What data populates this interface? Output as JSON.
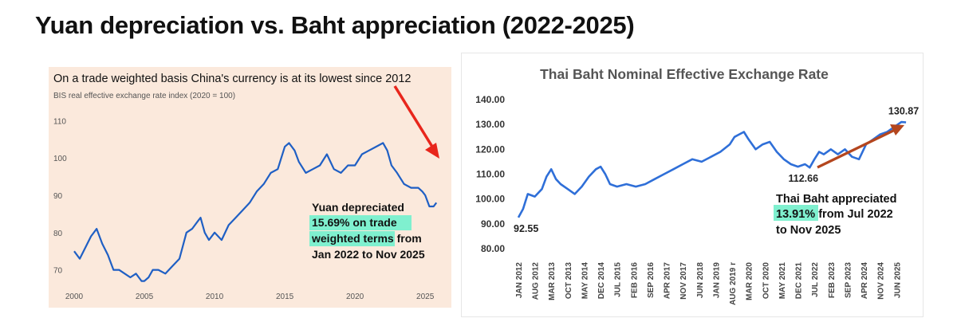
{
  "page": {
    "title": "Yuan depreciation vs. Baht appreciation (2022-2025)"
  },
  "colors": {
    "line": "#1f5fc4",
    "left_arrow": "#e8261c",
    "right_arrow": "#b4461e",
    "highlight": "#7ff0cf",
    "left_bg": "#fbe9dc"
  },
  "chart_data": [
    {
      "type": "line",
      "title": "On a trade weighted basis China's currency is at its lowest since 2012",
      "subtitle": "BIS real effective exchange rate index (2020 = 100)",
      "xlim": [
        2000,
        2025.9
      ],
      "ylim": [
        65,
        112
      ],
      "x_ticks": [
        2000,
        2005,
        2010,
        2015,
        2020,
        2025
      ],
      "x_tick_labels": [
        "2000",
        "2005",
        "2010",
        "2015",
        "2020",
        "2025"
      ],
      "y_ticks": [
        70,
        80,
        90,
        100,
        110
      ],
      "y_tick_labels": [
        "70",
        "80",
        "90",
        "100",
        "110"
      ],
      "grid": false,
      "series": [
        {
          "x": [
            2000,
            2000.4,
            2000.8,
            2001.2,
            2001.6,
            2002,
            2002.4,
            2002.8,
            2003.2,
            2003.6,
            2004,
            2004.4,
            2004.8,
            2005,
            2005.3,
            2005.6,
            2006,
            2006.5,
            2007,
            2007.5,
            2008,
            2008.4,
            2008.8,
            2009,
            2009.3,
            2009.6,
            2010,
            2010.5,
            2011,
            2011.5,
            2012,
            2012.5,
            2013,
            2013.5,
            2014,
            2014.5,
            2015,
            2015.3,
            2015.7,
            2016,
            2016.5,
            2017,
            2017.5,
            2018,
            2018.5,
            2019,
            2019.5,
            2020,
            2020.5,
            2021,
            2021.5,
            2022,
            2022.3,
            2022.6,
            2023,
            2023.5,
            2024,
            2024.5,
            2024.8,
            2025,
            2025.3,
            2025.6,
            2025.8
          ],
          "y": [
            75,
            73,
            76,
            79,
            81,
            77,
            74,
            70,
            70,
            69,
            68,
            69,
            67,
            67,
            68,
            70,
            70,
            69,
            71,
            73,
            80,
            81,
            83,
            84,
            80,
            78,
            80,
            78,
            82,
            84,
            86,
            88,
            91,
            93,
            96,
            97,
            103,
            104,
            102,
            99,
            96,
            97,
            98,
            101,
            97,
            96,
            98,
            98,
            101,
            102,
            103,
            104,
            102,
            98,
            96,
            93,
            92,
            92,
            91,
            90,
            87,
            87,
            88
          ]
        }
      ],
      "annotations": [
        {
          "text": "Yuan depreciated",
          "highlighted": false
        },
        {
          "text": "15.69% on trade",
          "highlighted": true
        },
        {
          "text": "weighted terms",
          "highlighted": true
        },
        {
          "text": " from",
          "highlighted": false
        },
        {
          "text": "Jan 2022 to Nov 2025",
          "highlighted": false
        }
      ]
    },
    {
      "type": "line",
      "title": "Thai Baht Nominal Effective Exchange Rate",
      "ylim": [
        80,
        140
      ],
      "y_ticks": [
        80,
        90,
        100,
        110,
        120,
        130,
        140
      ],
      "y_tick_labels": [
        "80.00",
        "90.00",
        "100.00",
        "110.00",
        "120.00",
        "130.00",
        "140.00"
      ],
      "grid": false,
      "x_tick_labels": [
        "JAN 2012",
        "AUG 2012",
        "MAR 2013",
        "OCT 2013",
        "MAY 2014",
        "DEC 2014",
        "JUL 2015",
        "FEB 2016",
        "SEP 2016",
        "APR 2017",
        "NOV 2017",
        "JUN 2018",
        "JAN 2019",
        "AUG 2019 r",
        "MAR 2020",
        "OCT 2020",
        "MAY 2021",
        "DEC 2021",
        "JUL 2022",
        "FEB 2023",
        "SEP 2023",
        "APR 2024",
        "NOV 2024",
        "JUN 2025"
      ],
      "x_tick_positions": [
        0,
        7,
        14,
        21,
        28,
        35,
        42,
        49,
        56,
        63,
        70,
        77,
        84,
        91,
        98,
        105,
        112,
        119,
        126,
        133,
        140,
        147,
        154,
        161
      ],
      "xlim": [
        0,
        166
      ],
      "series": [
        {
          "x": [
            0,
            2,
            4,
            7,
            10,
            12,
            14,
            16,
            18,
            21,
            24,
            27,
            30,
            33,
            35,
            37,
            39,
            42,
            46,
            50,
            54,
            58,
            62,
            66,
            70,
            74,
            78,
            82,
            86,
            90,
            92,
            94,
            96,
            98,
            101,
            104,
            107,
            110,
            113,
            116,
            119,
            122,
            124,
            126,
            128,
            130,
            133,
            136,
            139,
            142,
            145,
            148,
            151,
            154,
            157,
            160,
            163,
            165
          ],
          "y": [
            92.55,
            96,
            102,
            101,
            104,
            109,
            112,
            108,
            106,
            104,
            102,
            105,
            109,
            112,
            113,
            110,
            106,
            105,
            106,
            105,
            106,
            108,
            110,
            112,
            114,
            116,
            115,
            117,
            119,
            122,
            125,
            126,
            127,
            124,
            120,
            122,
            123,
            119,
            116,
            114,
            113,
            114,
            112.66,
            116,
            119,
            118,
            120,
            118,
            120,
            117,
            116,
            122,
            124,
            126,
            127,
            129,
            131,
            130.87
          ]
        }
      ],
      "data_labels": [
        {
          "text": "92.55"
        },
        {
          "text": "112.66"
        },
        {
          "text": "130.87"
        }
      ],
      "annotations": [
        {
          "text": "Thai Baht appreciated",
          "highlighted": false
        },
        {
          "text": "13.91%",
          "highlighted": true
        },
        {
          "text": " from Jul 2022",
          "highlighted": false
        },
        {
          "text": "to Nov 2025",
          "highlighted": false
        }
      ]
    }
  ]
}
